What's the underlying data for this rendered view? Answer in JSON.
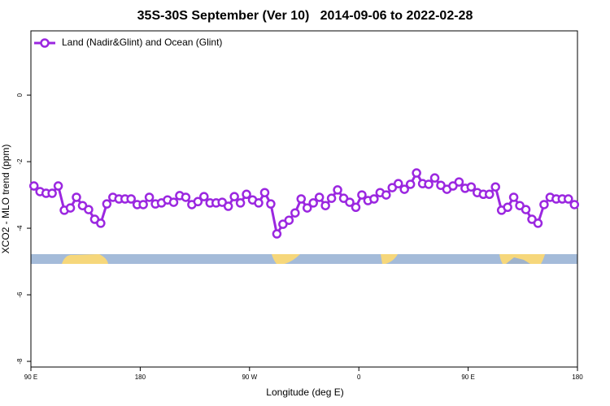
{
  "chart_data": {
    "type": "line",
    "title": "35S-30S September (Ver 10)   2014-09-06 to 2022-02-28",
    "x_label": "Longitude (deg E)",
    "y_label": "XCO2 - MLO trend (ppm)",
    "x": [
      92.5,
      97.5,
      102.5,
      107.5,
      112.5,
      117.5,
      122.5,
      127.5,
      132.5,
      137.5,
      142.5,
      147.5,
      152.5,
      157.5,
      162.5,
      167.5,
      172.5,
      177.5,
      182.5,
      187.5,
      192.5,
      197.5,
      202.5,
      207.5,
      212.5,
      217.5,
      222.5,
      227.5,
      232.5,
      237.5,
      242.5,
      247.5,
      252.5,
      257.5,
      262.5,
      267.5,
      272.5,
      277.5,
      282.5,
      287.5,
      292.5,
      297.5,
      302.5,
      307.5,
      312.5,
      317.5,
      322.5,
      327.5,
      332.5,
      337.5,
      342.5,
      347.5,
      352.5,
      357.5,
      362.5,
      367.5,
      372.5,
      377.5,
      382.5,
      387.5,
      392.5,
      397.5,
      402.5,
      407.5,
      412.5,
      417.5,
      422.5,
      427.5,
      432.5,
      437.5,
      442.5,
      447.5,
      452.5,
      457.5,
      462.5,
      467.5,
      472.5,
      477.5,
      482.5,
      487.5,
      492.5,
      497.5,
      502.5,
      507.5,
      512.5,
      517.5,
      522.5,
      527.5,
      532.5,
      537.5
    ],
    "series": [
      {
        "name": "Land (Nadir&Glint) and Ocean (Glint)",
        "color": "#9b27e0",
        "values": [
          -2.73,
          -2.9,
          -2.95,
          -2.95,
          -2.73,
          -3.46,
          -3.39,
          -3.07,
          -3.32,
          -3.44,
          -3.73,
          -3.85,
          -3.27,
          -3.07,
          -3.12,
          -3.12,
          -3.12,
          -3.29,
          -3.29,
          -3.07,
          -3.27,
          -3.24,
          -3.15,
          -3.22,
          -3.02,
          -3.07,
          -3.29,
          -3.2,
          -3.05,
          -3.24,
          -3.24,
          -3.22,
          -3.34,
          -3.05,
          -3.24,
          -2.98,
          -3.15,
          -3.24,
          -2.93,
          -3.27,
          -4.17,
          -3.88,
          -3.76,
          -3.54,
          -3.12,
          -3.39,
          -3.24,
          -3.07,
          -3.32,
          -3.1,
          -2.85,
          -3.1,
          -3.22,
          -3.37,
          -3.0,
          -3.17,
          -3.12,
          -2.93,
          -3.0,
          -2.78,
          -2.66,
          -2.83,
          -2.68,
          -2.34,
          -2.66,
          -2.68,
          -2.49,
          -2.71,
          -2.83,
          -2.73,
          -2.61,
          -2.8,
          -2.76,
          -2.93,
          -2.98,
          -2.98,
          -2.76,
          -3.46,
          -3.37,
          -3.07,
          -3.32,
          -3.44,
          -3.73,
          -3.85,
          -3.29,
          -3.07,
          -3.12,
          -3.12,
          -3.12,
          -3.29
        ]
      }
    ],
    "xlim": [
      90,
      540
    ],
    "xticks": [
      {
        "value": 90,
        "label": "90 E"
      },
      180,
      {
        "value": 270,
        "label": "90 W"
      },
      {
        "value": 360,
        "label": "0"
      },
      {
        "value": 450,
        "label": "90 E"
      },
      {
        "value": 540,
        "label": "180"
      }
    ],
    "ylim": [
      -8.17,
      1.93
    ],
    "yticks": [
      0,
      -2,
      -4,
      -6,
      -8
    ],
    "legend": "top-left"
  }
}
